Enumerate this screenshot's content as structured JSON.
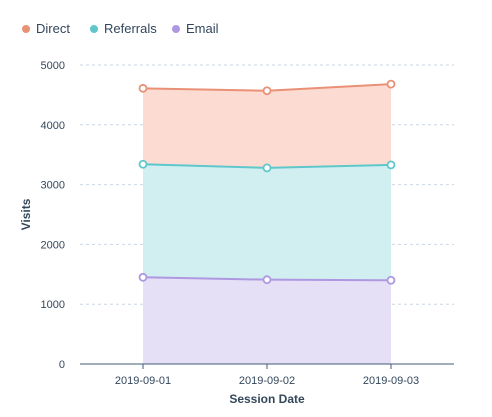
{
  "chart_data": {
    "type": "area",
    "stacked": true,
    "categories": [
      "2019-09-01",
      "2019-09-02",
      "2019-09-03"
    ],
    "xlabel": "Session Date",
    "ylabel": "Visits",
    "ylim": [
      0,
      5000
    ],
    "yticks": [
      0,
      1000,
      2000,
      3000,
      4000,
      5000
    ],
    "grid": true,
    "legend_position": "top-left",
    "series": [
      {
        "name": "Direct",
        "color": "#ea9076",
        "fill": "#fcdcd2",
        "values": [
          1270,
          1290,
          1350
        ]
      },
      {
        "name": "Referrals",
        "color": "#5fc7cc",
        "fill": "#d1eff0",
        "values": [
          1890,
          1870,
          1930
        ]
      },
      {
        "name": "Email",
        "color": "#ae98e1",
        "fill": "#e6e0f7",
        "values": [
          1450,
          1410,
          1400
        ]
      }
    ]
  }
}
